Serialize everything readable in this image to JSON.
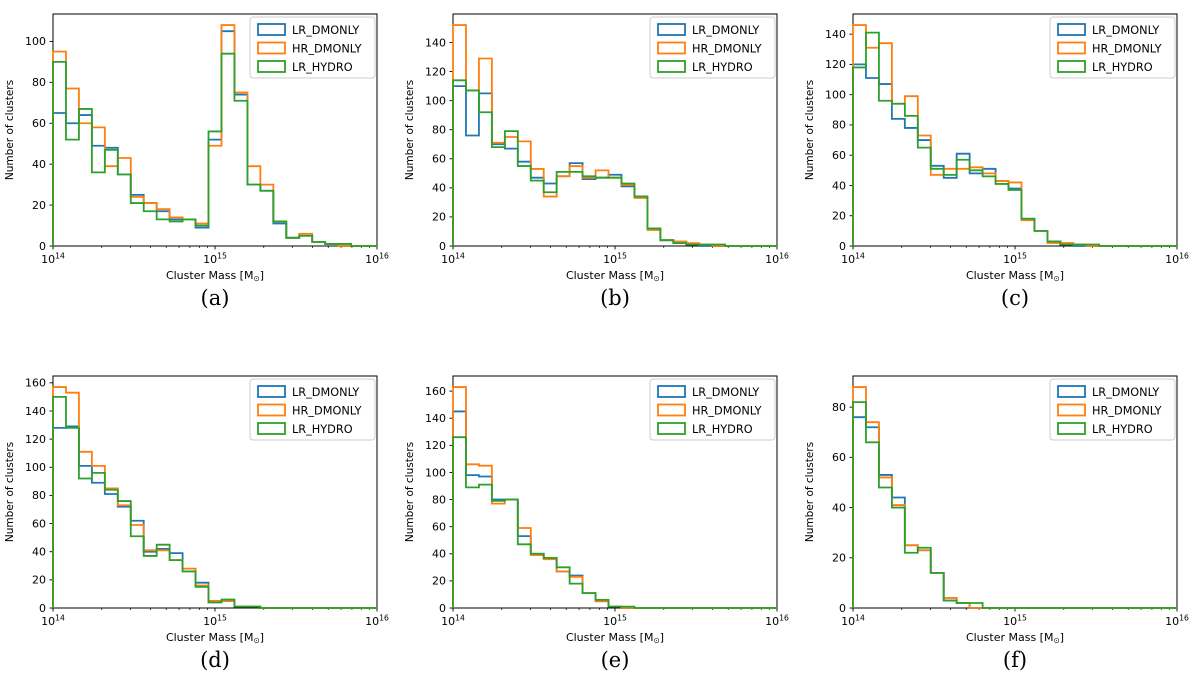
{
  "figure": {
    "background": "#ffffff",
    "text_color": "#000000"
  },
  "axes_common": {
    "xlabel": "Cluster Mass [M⊙]",
    "ylabel": "Number of clusters",
    "xscale": "log",
    "xlim_log10": [
      14,
      16
    ],
    "xticks": [
      {
        "pos": 14,
        "label": "10^14"
      },
      {
        "pos": 15,
        "label": "10^15"
      },
      {
        "pos": 16,
        "label": "10^16"
      }
    ],
    "grid": false,
    "legend": {
      "position": "upper right",
      "entries": [
        "LR_DMONLY",
        "HR_DMONLY",
        "LR_HYDRO"
      ]
    },
    "colors": {
      "LR_DMONLY": "#1f77b4",
      "HR_DMONLY": "#ff7f0e",
      "LR_HYDRO": "#2ca02c"
    },
    "bins": {
      "log10_min": 14,
      "log10_step": 0.08,
      "count": 25
    }
  },
  "chart_data": [
    {
      "type": "histogram-step",
      "panel_label": "(a)",
      "yticks": [
        0,
        20,
        40,
        60,
        80,
        100
      ],
      "ylim": [
        0,
        113.4
      ],
      "series": [
        {
          "name": "LR_DMONLY",
          "values": [
            65,
            60,
            64,
            49,
            48,
            35,
            25,
            21,
            17,
            13,
            13,
            9,
            52,
            105,
            74,
            30,
            27,
            11,
            4,
            5,
            2,
            1,
            0,
            0,
            0
          ]
        },
        {
          "name": "HR_DMONLY",
          "values": [
            95,
            77,
            60,
            58,
            39,
            43,
            24,
            21,
            18,
            14,
            13,
            11,
            49,
            108,
            75,
            39,
            30,
            12,
            4,
            6,
            2,
            1,
            0,
            0,
            0
          ]
        },
        {
          "name": "LR_HYDRO",
          "values": [
            90,
            52,
            67,
            36,
            47,
            35,
            21,
            17,
            13,
            12,
            13,
            10,
            56,
            94,
            71,
            30,
            27,
            12,
            4,
            5,
            2,
            1,
            1,
            0,
            0
          ]
        }
      ]
    },
    {
      "type": "histogram-step",
      "panel_label": "(b)",
      "yticks": [
        0,
        20,
        40,
        60,
        80,
        100,
        120,
        140
      ],
      "ylim": [
        0,
        159.6
      ],
      "series": [
        {
          "name": "LR_DMONLY",
          "values": [
            110,
            76,
            105,
            70,
            67,
            58,
            47,
            43,
            48,
            57,
            46,
            47,
            49,
            41,
            34,
            12,
            4,
            3,
            1,
            0,
            0,
            0,
            0,
            0,
            0
          ]
        },
        {
          "name": "HR_DMONLY",
          "values": [
            152,
            107,
            129,
            71,
            75,
            72,
            53,
            34,
            48,
            55,
            47,
            52,
            47,
            42,
            33,
            11,
            4,
            3,
            2,
            1,
            0,
            0,
            0,
            0,
            0
          ]
        },
        {
          "name": "LR_HYDRO",
          "values": [
            114,
            107,
            92,
            68,
            79,
            55,
            45,
            37,
            51,
            51,
            48,
            47,
            47,
            43,
            34,
            12,
            4,
            2,
            1,
            1,
            1,
            0,
            0,
            0,
            0
          ]
        }
      ]
    },
    {
      "type": "histogram-step",
      "panel_label": "(c)",
      "yticks": [
        0,
        20,
        40,
        60,
        80,
        100,
        120,
        140
      ],
      "ylim": [
        0,
        153.3
      ],
      "series": [
        {
          "name": "LR_DMONLY",
          "values": [
            120,
            111,
            107,
            84,
            78,
            70,
            53,
            45,
            61,
            48,
            51,
            43,
            38,
            18,
            10,
            3,
            1,
            0,
            0,
            0,
            0,
            0,
            0,
            0,
            0
          ]
        },
        {
          "name": "HR_DMONLY",
          "values": [
            146,
            131,
            134,
            94,
            99,
            73,
            47,
            51,
            51,
            52,
            48,
            43,
            42,
            17,
            10,
            2,
            2,
            1,
            0,
            0,
            0,
            0,
            0,
            0,
            0
          ]
        },
        {
          "name": "LR_HYDRO",
          "values": [
            118,
            141,
            96,
            94,
            86,
            65,
            51,
            47,
            57,
            50,
            46,
            41,
            37,
            18,
            10,
            3,
            1,
            1,
            1,
            0,
            0,
            0,
            0,
            0,
            0
          ]
        }
      ]
    },
    {
      "type": "histogram-step",
      "panel_label": "(d)",
      "yticks": [
        0,
        20,
        40,
        60,
        80,
        100,
        120,
        140,
        160
      ],
      "ylim": [
        0,
        164.85
      ],
      "series": [
        {
          "name": "LR_DMONLY",
          "values": [
            128,
            129,
            101,
            89,
            81,
            72,
            62,
            40,
            42,
            39,
            26,
            18,
            4,
            5,
            1,
            1,
            0,
            0,
            0,
            0,
            0,
            0,
            0,
            0,
            0
          ]
        },
        {
          "name": "HR_DMONLY",
          "values": [
            157,
            153,
            111,
            101,
            85,
            73,
            59,
            41,
            41,
            34,
            28,
            16,
            5,
            5,
            1,
            1,
            0,
            0,
            0,
            0,
            0,
            0,
            0,
            0,
            0
          ]
        },
        {
          "name": "LR_HYDRO",
          "values": [
            150,
            128,
            92,
            96,
            84,
            76,
            51,
            37,
            45,
            34,
            26,
            15,
            4,
            6,
            1,
            1,
            0,
            0,
            0,
            0,
            0,
            0,
            0,
            0,
            0
          ]
        }
      ]
    },
    {
      "type": "histogram-step",
      "panel_label": "(e)",
      "yticks": [
        0,
        20,
        40,
        60,
        80,
        100,
        120,
        140,
        160
      ],
      "ylim": [
        0,
        171.15
      ],
      "series": [
        {
          "name": "LR_DMONLY",
          "values": [
            145,
            98,
            97,
            80,
            80,
            53,
            40,
            37,
            27,
            24,
            11,
            5,
            1,
            0,
            0,
            0,
            0,
            0,
            0,
            0,
            0,
            0,
            0,
            0,
            0
          ]
        },
        {
          "name": "HR_DMONLY",
          "values": [
            163,
            106,
            105,
            77,
            80,
            59,
            39,
            36,
            27,
            23,
            11,
            5,
            1,
            0,
            0,
            0,
            0,
            0,
            0,
            0,
            0,
            0,
            0,
            0,
            0
          ]
        },
        {
          "name": "LR_HYDRO",
          "values": [
            126,
            89,
            91,
            79,
            80,
            47,
            40,
            37,
            30,
            18,
            11,
            6,
            1,
            1,
            0,
            0,
            0,
            0,
            0,
            0,
            0,
            0,
            0,
            0,
            0
          ]
        }
      ]
    },
    {
      "type": "histogram-step",
      "panel_label": "(f)",
      "yticks": [
        0,
        20,
        40,
        60,
        80
      ],
      "ylim": [
        0,
        92.4
      ],
      "series": [
        {
          "name": "LR_DMONLY",
          "values": [
            76,
            72,
            53,
            44,
            25,
            23,
            14,
            3,
            2,
            0,
            0,
            0,
            0,
            0,
            0,
            0,
            0,
            0,
            0,
            0,
            0,
            0,
            0,
            0,
            0
          ]
        },
        {
          "name": "HR_DMONLY",
          "values": [
            88,
            74,
            52,
            41,
            25,
            23,
            14,
            4,
            2,
            0,
            0,
            0,
            0,
            0,
            0,
            0,
            0,
            0,
            0,
            0,
            0,
            0,
            0,
            0,
            0
          ]
        },
        {
          "name": "LR_HYDRO",
          "values": [
            82,
            66,
            48,
            40,
            22,
            24,
            14,
            3,
            2,
            2,
            0,
            0,
            0,
            0,
            0,
            0,
            0,
            0,
            0,
            0,
            0,
            0,
            0,
            0,
            0
          ]
        }
      ]
    }
  ]
}
